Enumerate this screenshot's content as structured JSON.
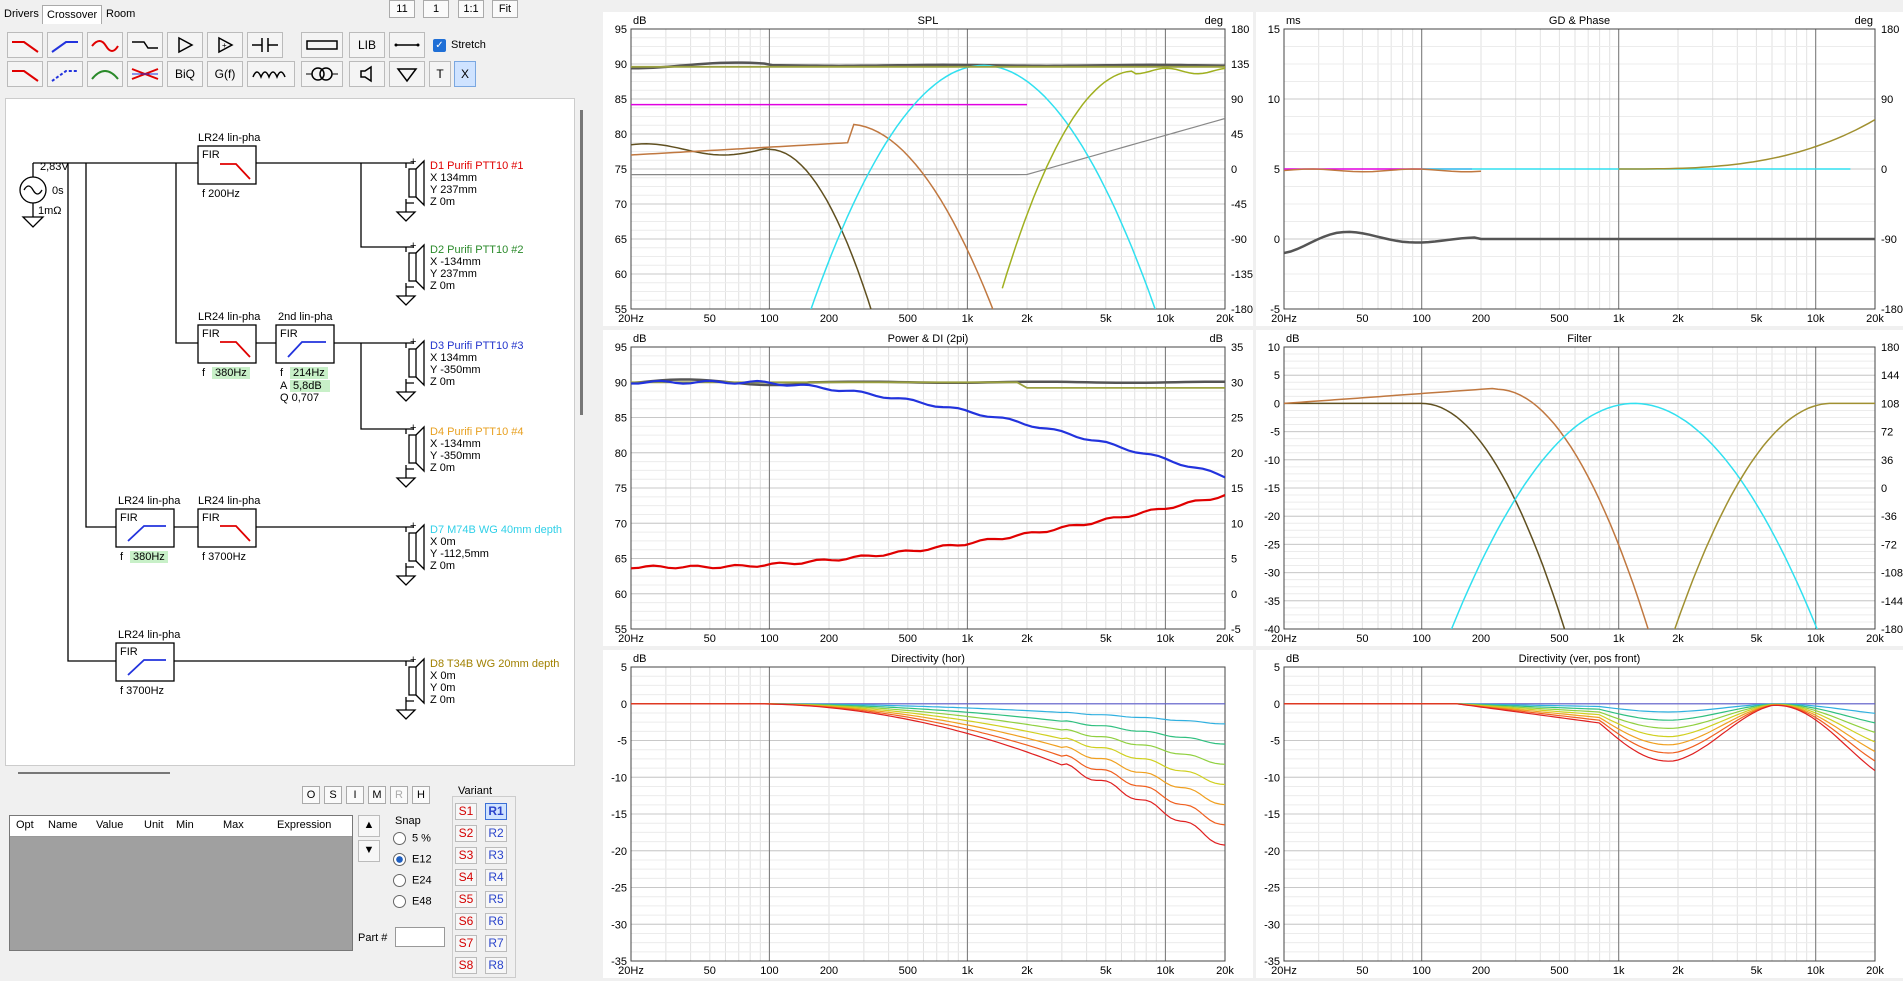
{
  "tabs": [
    "Drivers",
    "Crossover",
    "Room"
  ],
  "active_tab": "Crossover",
  "top_buttons": [
    "11",
    "1",
    "1:1",
    "Fit"
  ],
  "toolbar": {
    "biq": "BiQ",
    "gf": "G(f)",
    "lib": "LIB",
    "stretch_label": "Stretch",
    "t": "T",
    "x": "X"
  },
  "source": {
    "voltage": "2,83V",
    "delay": "0s",
    "resistance": "1mΩ"
  },
  "blocks": {
    "b1": {
      "title": "LR24 lin-pha",
      "type": "FIR",
      "f": "f  200Hz"
    },
    "b2": {
      "title": "LR24 lin-pha",
      "type": "FIR",
      "f": "f",
      "fval": "380Hz"
    },
    "b3": {
      "title": "2nd lin-pha",
      "type": "FIR",
      "f": "f",
      "fval": "214Hz",
      "a": "A",
      "aval": "5,8dB",
      "q": "Q  0,707"
    },
    "b4": {
      "title": "LR24 lin-pha",
      "type": "FIR",
      "f": "f",
      "fval": "380Hz"
    },
    "b5": {
      "title": "LR24 lin-pha",
      "type": "FIR",
      "f": "f  3700Hz"
    },
    "b6": {
      "title": "LR24 lin-pha",
      "type": "FIR",
      "f": "f  3700Hz"
    }
  },
  "drivers": [
    {
      "name": "D1 Purifi PTT10 #1",
      "color": "#e00000",
      "x": "X  134mm",
      "y": "Y  237mm",
      "z": "Z  0m"
    },
    {
      "name": "D2 Purifi PTT10 #2",
      "color": "#2a8a2a",
      "x": "X  -134mm",
      "y": "Y  237mm",
      "z": "Z  0m"
    },
    {
      "name": "D3 Purifi PTT10 #3",
      "color": "#2233cc",
      "x": "X  134mm",
      "y": "Y  -350mm",
      "z": "Z  0m"
    },
    {
      "name": "D4 Purifi PTT10 #4",
      "color": "#e8a020",
      "x": "X  -134mm",
      "y": "Y  -350mm",
      "z": "Z  0m"
    },
    {
      "name": "D7 M74B WG 40mm depth",
      "color": "#30d0e8",
      "x": "X  0m",
      "y": "Y  -112,5mm",
      "z": "Z  0m"
    },
    {
      "name": "D8 T34B WG 20mm depth",
      "color": "#a08000",
      "x": "X  0m",
      "y": "Y  0m",
      "z": "Z  0m"
    }
  ],
  "osimrh": [
    "O",
    "S",
    "I",
    "M",
    "R",
    "H"
  ],
  "table_headers": [
    "Opt",
    "Name",
    "Value",
    "Unit",
    "Min",
    "Max",
    "Expression"
  ],
  "snap": {
    "label": "Snap",
    "options": [
      "5 %",
      "E12",
      "E24",
      "E48"
    ],
    "selected": "E12"
  },
  "part_label": "Part #",
  "variant": {
    "label": "Variant",
    "s": [
      "S1",
      "S2",
      "S3",
      "S4",
      "S5",
      "S6",
      "S7",
      "S8"
    ],
    "r": [
      "R1",
      "R2",
      "R3",
      "R4",
      "R5",
      "R6",
      "R7",
      "R8"
    ],
    "selected": "R1"
  },
  "colors": {
    "red": "#e00000",
    "blue": "#2233dd",
    "green": "#2a8a2a",
    "cyan": "#30e0f0",
    "olive": "#8a8a20",
    "brown": "#c07840",
    "grey": "#555555",
    "magenta": "#e000e0"
  },
  "charts": {
    "spl": {
      "title": "SPL",
      "left_unit": "dB",
      "right_unit": "deg",
      "yl": [
        "95",
        "90",
        "85",
        "80",
        "75",
        "70",
        "65",
        "60",
        "55"
      ],
      "yr": [
        "180",
        "135",
        "90",
        "45",
        "0",
        "-45",
        "-90",
        "-135",
        "-180"
      ]
    },
    "gd": {
      "title": "GD & Phase",
      "left_unit": "ms",
      "right_unit": "deg",
      "yl": [
        "15",
        "10",
        "5",
        "0",
        "-5"
      ],
      "yr": [
        "180",
        "90",
        "0",
        "-90",
        "-180"
      ]
    },
    "power": {
      "title": "Power & DI (2pi)",
      "left_unit": "dB",
      "right_unit": "dB",
      "yl": [
        "95",
        "90",
        "85",
        "80",
        "75",
        "70",
        "65",
        "60",
        "55"
      ],
      "yr": [
        "35",
        "30",
        "25",
        "20",
        "15",
        "10",
        "5",
        "0",
        "-5"
      ]
    },
    "filter": {
      "title": "Filter",
      "left_unit": "dB",
      "right_unit": "",
      "yl": [
        "10",
        "5",
        "0",
        "-5",
        "-10",
        "-15",
        "-20",
        "-25",
        "-30",
        "-35",
        "-40"
      ],
      "yr": [
        "180",
        "144",
        "108",
        "72",
        "36",
        "0",
        "-36",
        "-72",
        "-108",
        "-144",
        "-180"
      ]
    },
    "dirh": {
      "title": "Directivity (hor)",
      "left_unit": "dB",
      "right_unit": "",
      "yl": [
        "5",
        "0",
        "-5",
        "-10",
        "-15",
        "-20",
        "-25",
        "-30",
        "-35"
      ],
      "yr": []
    },
    "dirv": {
      "title": "Directivity (ver, pos front)",
      "left_unit": "dB",
      "right_unit": "",
      "yl": [
        "5",
        "0",
        "-5",
        "-10",
        "-15",
        "-20",
        "-25",
        "-30",
        "-35"
      ],
      "yr": []
    }
  },
  "xticks": [
    "20Hz",
    "50",
    "100",
    "200",
    "500",
    "1k",
    "2k",
    "5k",
    "10k",
    "20k"
  ]
}
